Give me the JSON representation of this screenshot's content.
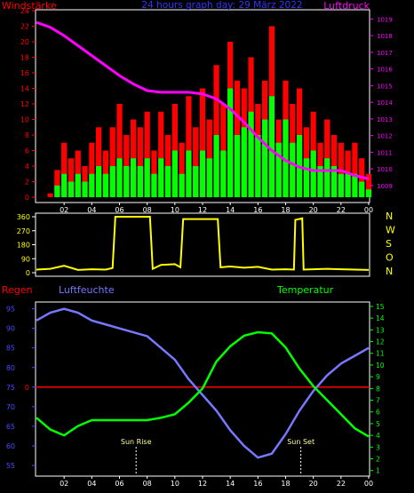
{
  "header": {
    "left_title": "Windstärke",
    "center_title": "24 hours graph day: 29 März 2022",
    "right_title": "Luftdruck"
  },
  "compass_letters": [
    "N",
    "W",
    "S",
    "O",
    "N"
  ],
  "lower_labels": {
    "rain": "Regen",
    "humidity": "Luftfeuchte",
    "temperature": "Temperatur",
    "sun_rise": "Sun Rise",
    "sun_set": "Sun Set"
  },
  "colors": {
    "wind_gust": "#ff0000",
    "wind_avg": "#00ff00",
    "pressure": "#ff00ff",
    "direction": "#ffff00",
    "humidity": "#7777ff",
    "temperature": "#00ff00",
    "rain": "#ff0000",
    "axes": "#ffffff",
    "left_axis_top": "#ff0000",
    "right_axis_top": "#ff00ff",
    "left_axis_bottom": "#4a4aff",
    "right_axis_bottom": "#00ff00"
  },
  "chart_data": [
    {
      "id": "wind_pressure",
      "type": "bar",
      "x_ticks": [
        "02",
        "04",
        "06",
        "08",
        "10",
        "12",
        "14",
        "16",
        "18",
        "20",
        "22",
        "00"
      ],
      "left_axis": {
        "label": "Windstärke",
        "ticks": [
          0,
          2,
          4,
          6,
          8,
          10,
          12,
          14,
          16,
          18,
          20,
          22,
          24
        ],
        "ylim": [
          0,
          24
        ]
      },
      "right_axis": {
        "label": "Luftdruck",
        "ticks": [
          1009,
          1010,
          1011,
          1012,
          1013,
          1014,
          1015,
          1016,
          1017,
          1018,
          1019
        ],
        "ylim": [
          1008.3,
          1019.5
        ]
      },
      "series": [
        {
          "name": "Böen",
          "kind": "bars",
          "x": [
            0,
            1,
            1.5,
            2,
            2.5,
            3,
            3.5,
            4,
            4.5,
            5,
            5.5,
            6,
            6.5,
            7,
            7.5,
            8,
            8.5,
            9,
            9.5,
            10,
            10.5,
            11,
            11.5,
            12,
            12.5,
            13,
            13.5,
            14,
            14.5,
            15,
            15.5,
            16,
            16.5,
            17,
            17.5,
            18,
            18.5,
            19,
            19.5,
            20,
            20.5,
            21,
            21.5,
            22,
            22.5,
            23,
            23.5,
            24
          ],
          "values": [
            0,
            0.5,
            3.5,
            7,
            5,
            6,
            4,
            7,
            9,
            6,
            9,
            12,
            8,
            10,
            9,
            11,
            6,
            11,
            8,
            12,
            7,
            13,
            9,
            14,
            10,
            17,
            12,
            20,
            15,
            14,
            18,
            12,
            15,
            22,
            10,
            15,
            12,
            14,
            9,
            11,
            7,
            10,
            8,
            7,
            6,
            7,
            5,
            3
          ]
        },
        {
          "name": "Wind",
          "kind": "bars",
          "x": [
            0,
            1,
            1.5,
            2,
            2.5,
            3,
            3.5,
            4,
            4.5,
            5,
            5.5,
            6,
            6.5,
            7,
            7.5,
            8,
            8.5,
            9,
            9.5,
            10,
            10.5,
            11,
            11.5,
            12,
            12.5,
            13,
            13.5,
            14,
            14.5,
            15,
            15.5,
            16,
            16.5,
            17,
            17.5,
            18,
            18.5,
            19,
            19.5,
            20,
            20.5,
            21,
            21.5,
            22,
            22.5,
            23,
            23.5,
            24
          ],
          "values": [
            0,
            0,
            1.5,
            3,
            2,
            3,
            2,
            3,
            4,
            3,
            4,
            5,
            4,
            5,
            4,
            5,
            3,
            5,
            4,
            6,
            3,
            6,
            4,
            6,
            5,
            8,
            6,
            14,
            8,
            9,
            11,
            8,
            10,
            13,
            7,
            10,
            7,
            8,
            5,
            6,
            4,
            5,
            4,
            3,
            3,
            3,
            2,
            1
          ]
        },
        {
          "name": "Luftdruck",
          "kind": "line",
          "axis": "right",
          "x": [
            0,
            1,
            2,
            3,
            4,
            5,
            6,
            7,
            8,
            9,
            10,
            11,
            12,
            13,
            14,
            15,
            16,
            17,
            18,
            19,
            20,
            21,
            22,
            23,
            24
          ],
          "values": [
            1018.8,
            1018.5,
            1018.0,
            1017.4,
            1016.8,
            1016.2,
            1015.6,
            1015.1,
            1014.7,
            1014.6,
            1014.6,
            1014.6,
            1014.5,
            1014.2,
            1013.6,
            1012.8,
            1011.9,
            1011.1,
            1010.5,
            1010.1,
            1009.9,
            1009.9,
            1009.9,
            1009.6,
            1009.4
          ]
        }
      ]
    },
    {
      "id": "direction",
      "type": "line",
      "y_ticks": [
        0,
        90,
        180,
        270,
        360
      ],
      "ylim": [
        0,
        360
      ],
      "series": [
        {
          "name": "Windrichtung",
          "x": [
            0,
            1,
            2,
            3,
            4,
            5,
            5.5,
            5.7,
            8.2,
            8.4,
            9,
            10,
            10.4,
            10.6,
            13.1,
            13.3,
            14,
            15,
            16,
            17,
            18,
            18.6,
            18.7,
            19.2,
            19.3,
            20,
            21,
            22,
            23,
            24
          ],
          "values": [
            20,
            25,
            45,
            18,
            22,
            20,
            30,
            360,
            360,
            25,
            50,
            55,
            35,
            345,
            345,
            35,
            40,
            32,
            38,
            20,
            22,
            20,
            340,
            350,
            20,
            22,
            25,
            22,
            20,
            18
          ]
        }
      ]
    },
    {
      "id": "humidity_temperature",
      "type": "line",
      "x_ticks": [
        "02",
        "04",
        "06",
        "08",
        "10",
        "12",
        "14",
        "16",
        "18",
        "20",
        "22",
        "00"
      ],
      "left_axis": {
        "label": "Luftfeuchte",
        "ticks": [
          55,
          60,
          65,
          70,
          75,
          80,
          85,
          90,
          95
        ],
        "ylim": [
          52.5,
          96.5
        ]
      },
      "right_axis": {
        "label": "Temperatur",
        "ticks": [
          1,
          2,
          3,
          4,
          5,
          6,
          7,
          8,
          9,
          10,
          11,
          12,
          13,
          14,
          15
        ],
        "ylim": [
          0.6,
          15.3
        ]
      },
      "rain_value_label": "0",
      "sun_rise": 7.2,
      "sun_set": 19.1,
      "series": [
        {
          "name": "Luftfeuchte",
          "axis": "left",
          "x": [
            0,
            1,
            2,
            3,
            4,
            5,
            6,
            7,
            8,
            9,
            10,
            11,
            12,
            13,
            14,
            15,
            16,
            17,
            18,
            19,
            20,
            21,
            22,
            23,
            24
          ],
          "values": [
            92,
            94,
            95,
            94,
            92,
            91,
            90,
            89,
            88,
            85,
            82,
            77,
            73,
            69,
            64,
            60,
            57,
            58,
            63,
            69,
            74,
            78,
            81,
            83,
            85
          ]
        },
        {
          "name": "Temperatur",
          "axis": "right",
          "x": [
            0,
            1,
            2,
            3,
            4,
            5,
            6,
            7,
            8,
            9,
            10,
            11,
            12,
            13,
            14,
            15,
            16,
            17,
            18,
            19,
            20,
            21,
            22,
            23,
            24
          ],
          "values": [
            5.5,
            4.5,
            4.0,
            4.8,
            5.3,
            5.3,
            5.3,
            5.3,
            5.3,
            5.5,
            5.8,
            6.8,
            8.0,
            10.3,
            11.6,
            12.5,
            12.8,
            12.7,
            11.5,
            9.7,
            8.2,
            7.0,
            5.8,
            4.6,
            3.9
          ]
        }
      ]
    }
  ]
}
